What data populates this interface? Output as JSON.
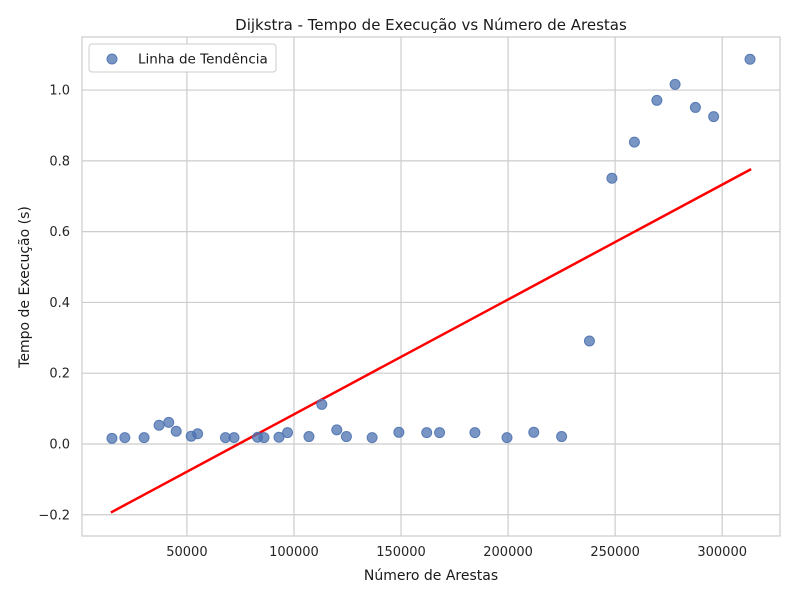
{
  "chart_data": {
    "type": "scatter",
    "title": "Dijkstra - Tempo de Execução vs Número de Arestas",
    "xlabel": "Número de Arestas",
    "ylabel": "Tempo de Execução (s)",
    "xlim": [
      1000,
      327000
    ],
    "ylim": [
      -0.26,
      1.15
    ],
    "grid": true,
    "legend_position": "top-left",
    "x_ticks": [
      50000,
      100000,
      150000,
      200000,
      250000,
      300000
    ],
    "x_tick_labels": [
      "50000",
      "100000",
      "150000",
      "200000",
      "250000",
      "300000"
    ],
    "y_ticks": [
      -0.2,
      0.0,
      0.2,
      0.4,
      0.6,
      0.8,
      1.0
    ],
    "y_tick_labels": [
      "−0.2",
      "0.0",
      "0.2",
      "0.4",
      "0.6",
      "0.8",
      "1.0"
    ],
    "series": [
      {
        "name": "Linha de Tendência",
        "type": "scatter",
        "color": "#4c72b0",
        "x": [
          15000,
          21000,
          30000,
          37000,
          41500,
          45000,
          52000,
          55000,
          68000,
          72000,
          83000,
          86000,
          93000,
          97000,
          107000,
          113000,
          120000,
          124500,
          136500,
          149000,
          162000,
          168000,
          184500,
          199500,
          212000,
          225000,
          238000,
          248500,
          259000,
          269500,
          278000,
          287500,
          296000,
          313000
        ],
        "y": [
          0.016,
          0.018,
          0.018,
          0.053,
          0.061,
          0.036,
          0.022,
          0.029,
          0.018,
          0.018,
          0.019,
          0.018,
          0.019,
          0.032,
          0.021,
          0.112,
          0.04,
          0.021,
          0.018,
          0.033,
          0.032,
          0.032,
          0.032,
          0.018,
          0.033,
          0.021,
          0.291,
          0.751,
          0.853,
          0.971,
          1.016,
          0.951,
          0.925,
          1.087
        ]
      },
      {
        "type": "line",
        "color": "#ff0000",
        "x": [
          15000,
          313000
        ],
        "y": [
          -0.192,
          0.775
        ]
      }
    ]
  }
}
